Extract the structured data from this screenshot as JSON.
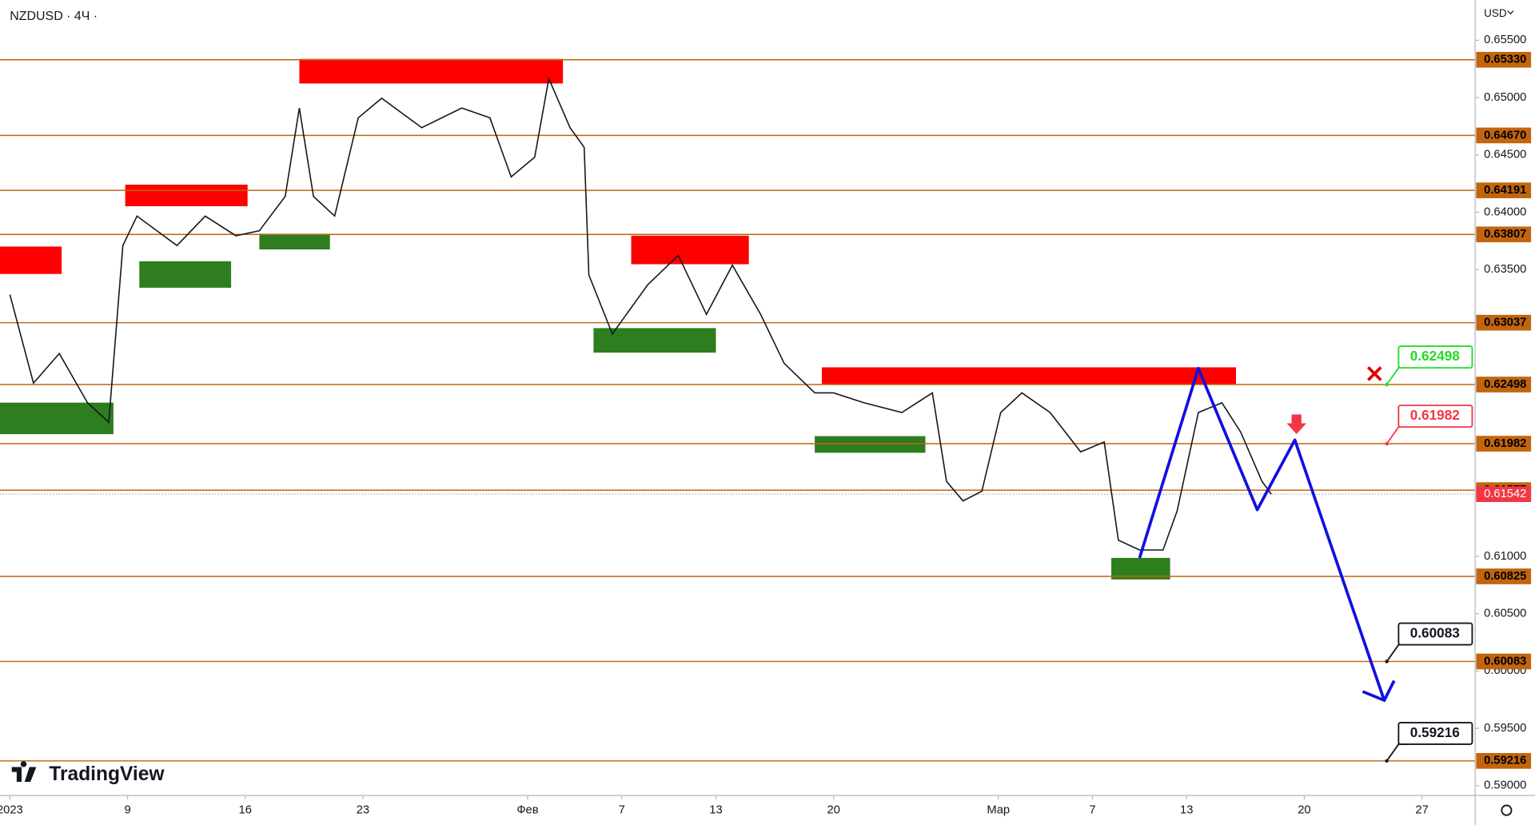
{
  "chart_data": {
    "type": "line",
    "title": "NZDUSD · 4Ч ·",
    "currency": "USD",
    "brand": "TradingView",
    "xlim": [
      -0.42,
      62.26
    ],
    "ylim": [
      0.58914,
      0.65851
    ],
    "xticks": [
      {
        "value": 0,
        "label": "2023"
      },
      {
        "value": 5,
        "label": "9"
      },
      {
        "value": 10,
        "label": "16"
      },
      {
        "value": 15,
        "label": "23"
      },
      {
        "value": 22,
        "label": "Фев"
      },
      {
        "value": 26,
        "label": "7"
      },
      {
        "value": 30,
        "label": "13"
      },
      {
        "value": 35,
        "label": "20"
      },
      {
        "value": 42,
        "label": "Мар"
      },
      {
        "value": 46,
        "label": "7"
      },
      {
        "value": 50,
        "label": "13"
      },
      {
        "value": 55,
        "label": "20"
      },
      {
        "value": 60,
        "label": "27"
      }
    ],
    "yticks": [
      {
        "value": 0.655,
        "label": "0.65500"
      },
      {
        "value": 0.65,
        "label": "0.65000"
      },
      {
        "value": 0.645,
        "label": "0.64500"
      },
      {
        "value": 0.64,
        "label": "0.64000"
      },
      {
        "value": 0.635,
        "label": "0.63500"
      },
      {
        "value": 0.61,
        "label": "0.61000"
      },
      {
        "value": 0.605,
        "label": "0.60500"
      },
      {
        "value": 0.6,
        "label": "0.60000"
      },
      {
        "value": 0.595,
        "label": "0.59500"
      },
      {
        "value": 0.59,
        "label": "0.59000"
      }
    ],
    "x": [
      0,
      1.0,
      2.1,
      3.3,
      4.2,
      4.8,
      5.4,
      7.1,
      8.3,
      9.6,
      10.6,
      11.7,
      12.3,
      12.9,
      13.8,
      14.8,
      15.8,
      17.5,
      19.2,
      20.4,
      21.3,
      22.3,
      22.9,
      23.8,
      24.4,
      24.6,
      25.6,
      27.1,
      28.4,
      29.6,
      30.7,
      31.9,
      32.9,
      34.2,
      35.0,
      36.3,
      37.9,
      39.2,
      39.8,
      40.5,
      41.3,
      42.1,
      43.0,
      44.2,
      45.5,
      46.5,
      47.1,
      48.0,
      49.0,
      49.6,
      50.5,
      51.5,
      52.3,
      53.2,
      53.6
    ],
    "values": [
      0.63282,
      0.6251,
      0.62768,
      0.62339,
      0.62168,
      0.6371,
      0.63967,
      0.6371,
      0.63967,
      0.63796,
      0.63838,
      0.64138,
      0.64909,
      0.64138,
      0.63967,
      0.64823,
      0.64995,
      0.64738,
      0.64909,
      0.64823,
      0.64309,
      0.64481,
      0.65166,
      0.64738,
      0.64566,
      0.63453,
      0.62939,
      0.63367,
      0.63624,
      0.6311,
      0.63539,
      0.6311,
      0.62682,
      0.62425,
      0.62425,
      0.62339,
      0.62254,
      0.62425,
      0.61654,
      0.61483,
      0.61568,
      0.62254,
      0.62425,
      0.62254,
      0.61911,
      0.61997,
      0.61141,
      0.61055,
      0.61055,
      0.61397,
      0.62254,
      0.62339,
      0.62082,
      0.61654,
      0.61542
    ],
    "color": "#131722",
    "levels": [
      {
        "value": 0.6533,
        "label": "0.65330"
      },
      {
        "value": 0.6467,
        "label": "0.64670"
      },
      0.64191,
      0.63807,
      0.63037,
      0.62498,
      0.61982,
      0.61577,
      0.60825,
      0.60083,
      0.59216
    ],
    "level_color": "#c2650f",
    "last_price": 0.61542,
    "last_price_color": "#f23645",
    "zones": [
      {
        "x": [
          -0.42,
          2.2
        ],
        "y": [
          0.63462,
          0.63701
        ],
        "color": "#ff0000"
      },
      {
        "x": [
          4.9,
          10.1
        ],
        "y": [
          0.64053,
          0.64241
        ],
        "color": "#ff0000"
      },
      {
        "x": [
          12.3,
          23.5
        ],
        "y": [
          0.65123,
          0.65337
        ],
        "color": "#ff0000"
      },
      {
        "x": [
          26.4,
          31.4
        ],
        "y": [
          0.63547,
          0.63796
        ],
        "color": "#ff0000"
      },
      {
        "x": [
          34.5,
          52.1
        ],
        "y": [
          0.62502,
          0.62648
        ],
        "color": "#ff0000"
      },
      {
        "x": [
          -0.42,
          4.4
        ],
        "y": [
          0.62065,
          0.6234
        ],
        "color": "#2e7d1e"
      },
      {
        "x": [
          5.5,
          9.4
        ],
        "y": [
          0.63342,
          0.63573
        ],
        "color": "#2e7d1e"
      },
      {
        "x": [
          10.6,
          13.6
        ],
        "y": [
          0.63676,
          0.63813
        ],
        "color": "#2e7d1e"
      },
      {
        "x": [
          24.8,
          30.0
        ],
        "y": [
          0.62776,
          0.6299
        ],
        "color": "#2e7d1e"
      },
      {
        "x": [
          34.2,
          38.9
        ],
        "y": [
          0.61903,
          0.62048
        ],
        "color": "#2e7d1e"
      },
      {
        "x": [
          46.8,
          49.3
        ],
        "y": [
          0.60798,
          0.60986
        ],
        "color": "#2e7d1e"
      }
    ],
    "projection": {
      "x": [
        48.0,
        50.5,
        53.0,
        54.6,
        58.4
      ],
      "values": [
        0.60986,
        0.62639,
        0.61406,
        0.62014,
        0.59744
      ],
      "color": "#1010e0"
    },
    "annotations": [
      {
        "value": 0.62498,
        "color": "#22dd22"
      },
      {
        "value": 0.61982,
        "color": "#f23645"
      },
      {
        "value": 0.60083,
        "color": "#131722"
      },
      {
        "value": 0.59216,
        "color": "#131722"
      }
    ]
  }
}
